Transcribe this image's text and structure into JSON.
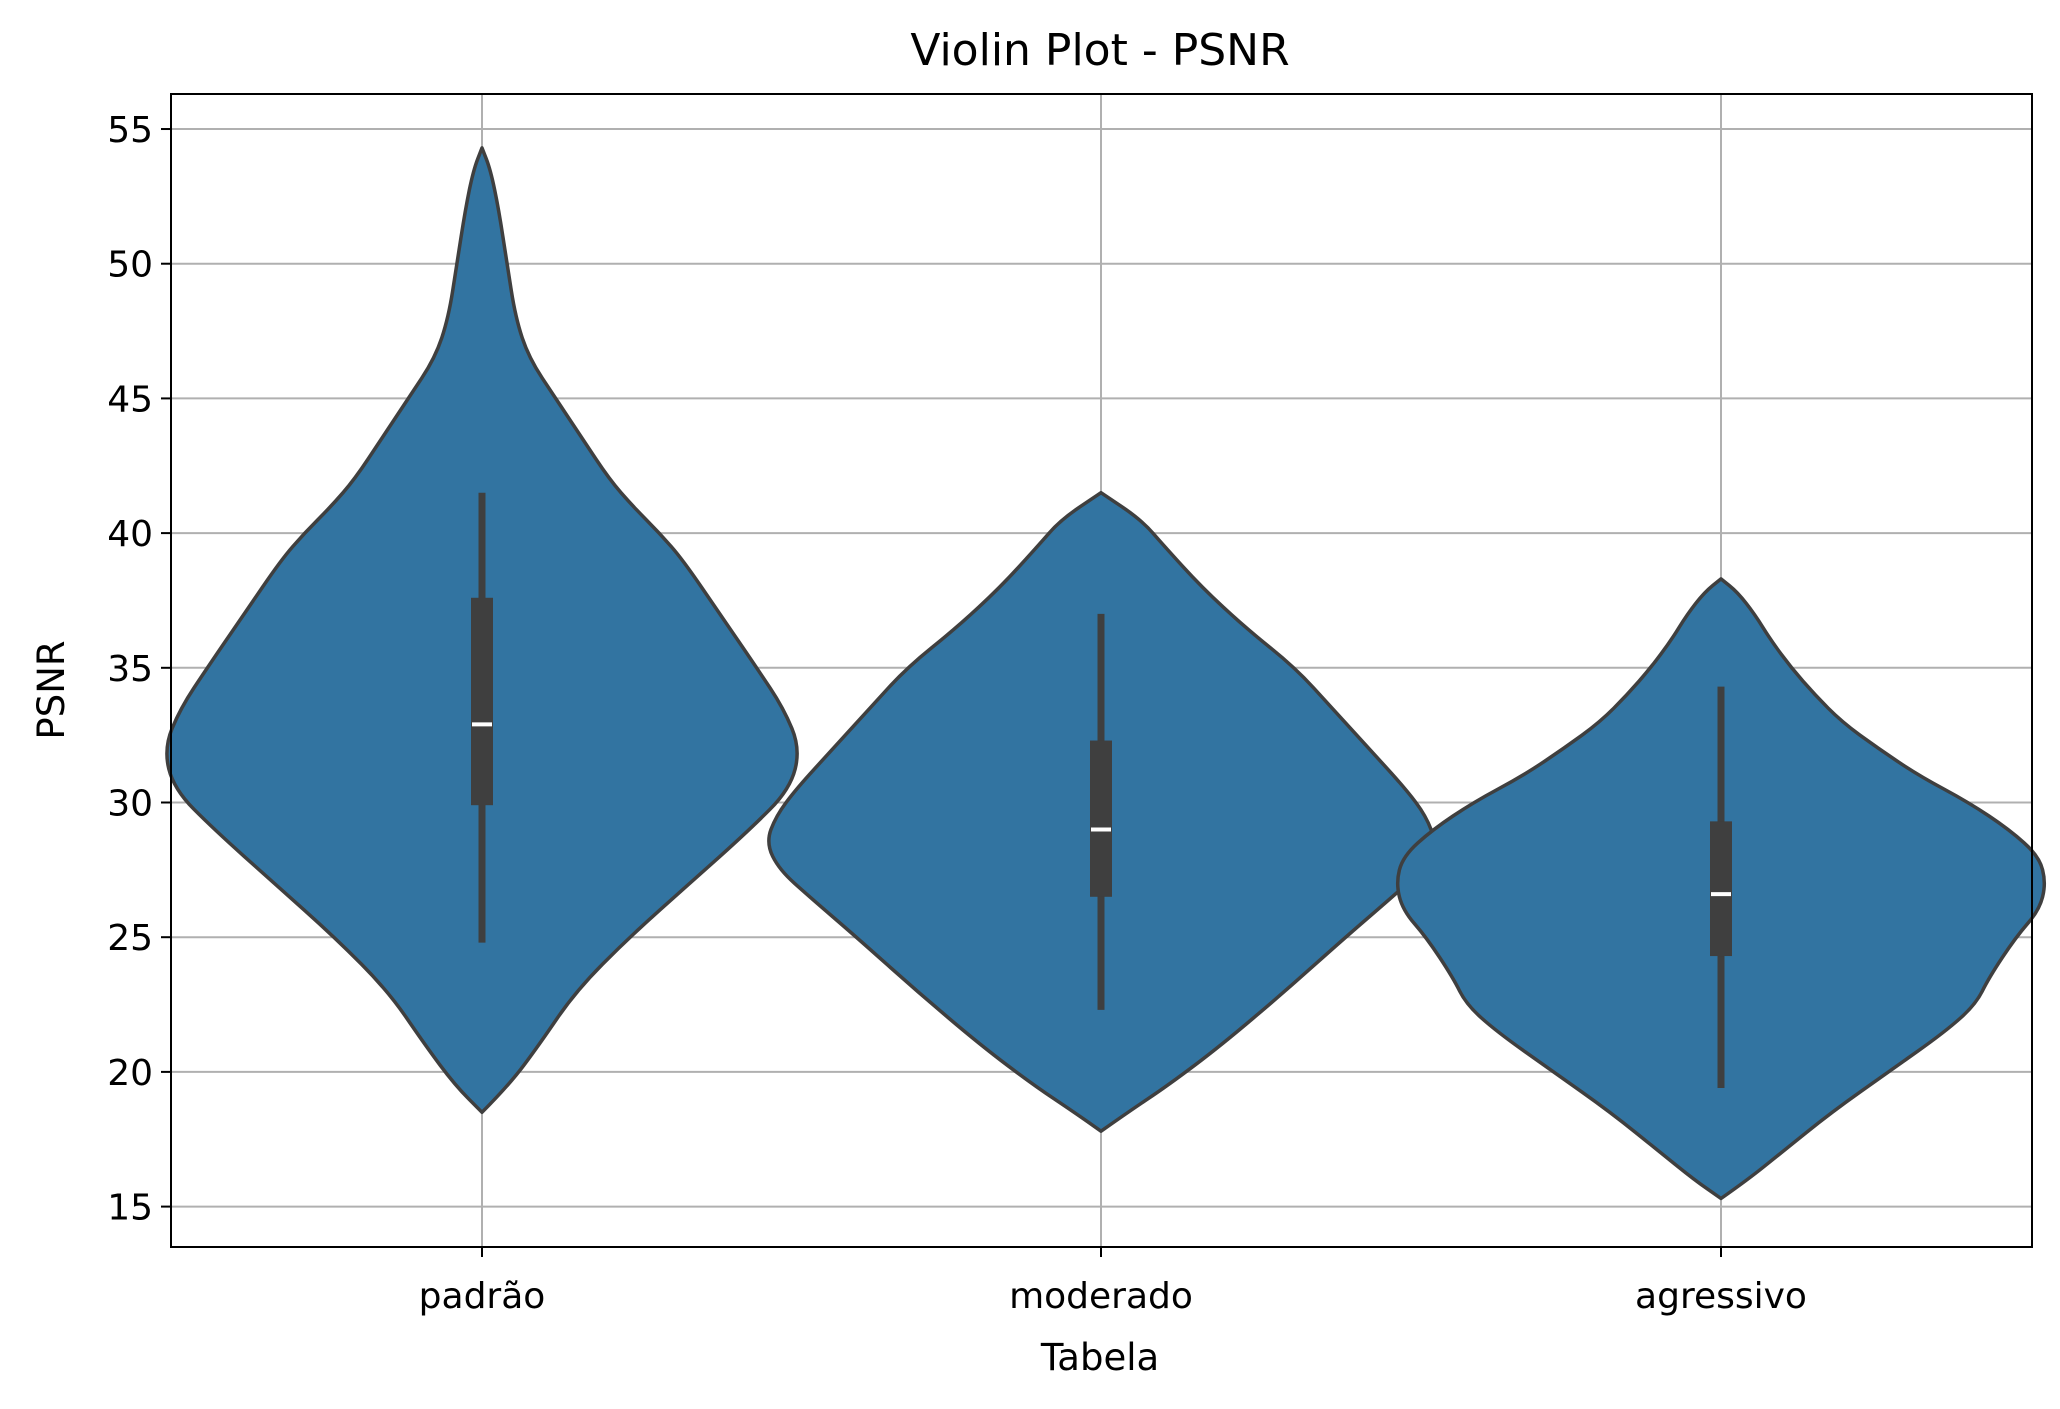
{
  "chart_data": {
    "type": "violin",
    "title": "Violin Plot - PSNR",
    "xlabel": "Tabela",
    "ylabel": "PSNR",
    "categories": [
      "padrão",
      "moderado",
      "agressivo"
    ],
    "ylim": [
      13.5,
      56.3
    ],
    "yticks": [
      15,
      20,
      25,
      30,
      35,
      40,
      45,
      50,
      55
    ],
    "grid": true,
    "colors": {
      "violin_fill": "#3274a1",
      "violin_edge": "#3f3f3f",
      "box": "#3f3f3f",
      "median": "#ffffff",
      "grid": "#b0b0b0"
    },
    "violins": [
      {
        "category": "padrão",
        "min": 18.5,
        "max": 54.3,
        "whisker_low": 24.8,
        "whisker_high": 41.5,
        "q1": 29.9,
        "median": 32.9,
        "q3": 37.6,
        "density": [
          [
            18.5,
            0.0
          ],
          [
            19.5,
            0.08
          ],
          [
            21,
            0.17
          ],
          [
            23,
            0.28
          ],
          [
            25,
            0.44
          ],
          [
            27,
            0.62
          ],
          [
            29,
            0.8
          ],
          [
            30.5,
            0.92
          ],
          [
            32,
            0.95
          ],
          [
            33.5,
            0.9
          ],
          [
            35,
            0.82
          ],
          [
            37,
            0.71
          ],
          [
            39,
            0.6
          ],
          [
            40,
            0.53
          ],
          [
            41,
            0.45
          ],
          [
            42,
            0.38
          ],
          [
            43.5,
            0.3
          ],
          [
            45,
            0.22
          ],
          [
            46.5,
            0.14
          ],
          [
            48,
            0.1
          ],
          [
            50,
            0.075
          ],
          [
            52,
            0.05
          ],
          [
            53.5,
            0.025
          ],
          [
            54.3,
            0.0
          ]
        ]
      },
      {
        "category": "moderado",
        "min": 17.8,
        "max": 41.5,
        "whisker_low": 22.3,
        "whisker_high": 37.0,
        "q1": 26.5,
        "median": 29.0,
        "q3": 32.3,
        "density": [
          [
            17.8,
            0.0
          ],
          [
            18.5,
            0.08
          ],
          [
            19.5,
            0.2
          ],
          [
            21,
            0.36
          ],
          [
            23,
            0.55
          ],
          [
            25,
            0.73
          ],
          [
            26.5,
            0.87
          ],
          [
            27.5,
            0.96
          ],
          [
            28.5,
            1.0
          ],
          [
            29.5,
            0.97
          ],
          [
            30.5,
            0.91
          ],
          [
            32,
            0.8
          ],
          [
            33.5,
            0.69
          ],
          [
            35,
            0.58
          ],
          [
            36.5,
            0.43
          ],
          [
            38,
            0.3
          ],
          [
            39.5,
            0.19
          ],
          [
            40.5,
            0.12
          ],
          [
            41.5,
            0.0
          ]
        ]
      },
      {
        "category": "agressivo",
        "min": 15.3,
        "max": 38.3,
        "whisker_low": 19.4,
        "whisker_high": 34.3,
        "q1": 24.3,
        "median": 26.6,
        "q3": 29.3,
        "density": [
          [
            15.3,
            0.0
          ],
          [
            16,
            0.08
          ],
          [
            17,
            0.18
          ],
          [
            18.5,
            0.33
          ],
          [
            20,
            0.5
          ],
          [
            21.5,
            0.67
          ],
          [
            22.5,
            0.76
          ],
          [
            23.5,
            0.8
          ],
          [
            25,
            0.88
          ],
          [
            26,
            0.95
          ],
          [
            27,
            0.97
          ],
          [
            28,
            0.95
          ],
          [
            29,
            0.86
          ],
          [
            30,
            0.74
          ],
          [
            31,
            0.59
          ],
          [
            32,
            0.47
          ],
          [
            33,
            0.36
          ],
          [
            34,
            0.28
          ],
          [
            35,
            0.21
          ],
          [
            36,
            0.15
          ],
          [
            37,
            0.1
          ],
          [
            37.8,
            0.05
          ],
          [
            38.3,
            0.0
          ]
        ]
      }
    ]
  }
}
